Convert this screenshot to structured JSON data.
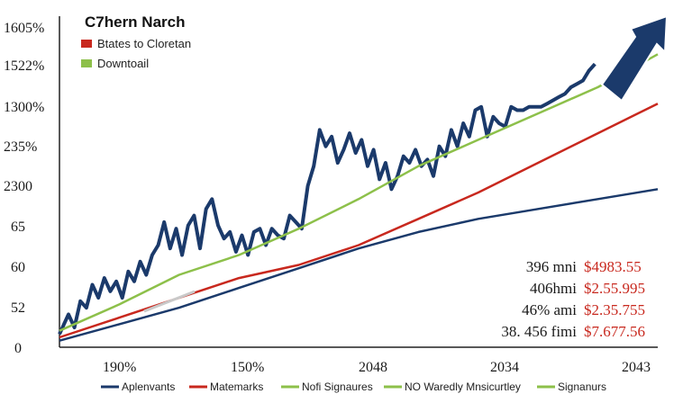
{
  "chart_data": {
    "type": "line",
    "title": "C7hern Narch",
    "y_tick_labels": [
      "1605%",
      "1522%",
      "1300%",
      "235%",
      "2300",
      "65",
      "60",
      "52",
      "0"
    ],
    "x_tick_labels": [
      "190%",
      "150%",
      "2048",
      "2034",
      "2043"
    ],
    "legend_top": [
      {
        "label": "Btates to Cloretan",
        "color": "#c8281e"
      },
      {
        "label": "Downtoail",
        "color": "#8dc04a"
      }
    ],
    "legend_bottom": [
      {
        "label": "Aplenvants",
        "color": "#1b3a6b"
      },
      {
        "label": "Matemarks",
        "color": "#c8281e"
      },
      {
        "label": "Nofi Signaures",
        "color": "#8dc04a"
      },
      {
        "label": "NO Waredly Mnsicurtley",
        "color": "#8dc04a"
      },
      {
        "label": "Signanurs",
        "color": "#8dc04a"
      }
    ],
    "annotations": [
      {
        "label": "396 mni",
        "value": "$4983.55"
      },
      {
        "label": "406hmi",
        "value": "$2.55.995"
      },
      {
        "label": "46% ami",
        "value": "$2.35.755"
      },
      {
        "label": "38. 456 fimi",
        "value": "$7.677.56"
      }
    ],
    "x_range": [
      0,
      100
    ],
    "y_range": [
      0,
      100
    ],
    "series": [
      {
        "name": "Aplenvants (volatile)",
        "color": "#1b3a6b",
        "x": [
          0,
          1.5,
          2.5,
          3.5,
          4.5,
          5.5,
          6.5,
          7.5,
          8.5,
          9.5,
          10.5,
          11.5,
          12.5,
          13.5,
          14.5,
          15.5,
          16.5,
          17.5,
          18.5,
          19.5,
          20.5,
          21.5,
          22.5,
          23.5,
          24.5,
          25.5,
          26.5,
          27.5,
          28.5,
          29.5,
          30.5,
          31.5,
          32.5,
          33.5,
          34.5,
          35.5,
          36.5,
          37.5,
          38.5,
          39.5,
          40.5,
          41.5,
          42.5,
          43.5,
          44.5,
          45.5,
          46.5,
          47.5,
          48.5,
          49.5,
          50.5,
          51.5,
          52.5,
          53.5,
          54.5,
          55.5,
          56.5,
          57.5,
          58.5,
          59.5,
          60.5,
          61.5,
          62.5,
          63.5,
          64.5,
          65.5,
          66.5,
          67.5,
          68.5,
          69.5,
          70.5,
          71.5,
          72.5,
          73.5,
          74.5,
          75.5,
          76.5,
          77.5,
          78.5,
          79.5,
          80.5,
          81.5,
          82.5,
          83.5,
          84.5,
          85.5,
          86.5,
          87.5,
          88.5,
          89.5
        ],
        "y": [
          4,
          10,
          6,
          14,
          12,
          19,
          15,
          21,
          17,
          20,
          15,
          23,
          20,
          26,
          22,
          28,
          31,
          38,
          30,
          36,
          28,
          37,
          40,
          30,
          42,
          45,
          37,
          33,
          35,
          29,
          34,
          28,
          35,
          36,
          31,
          36,
          34,
          33,
          40,
          38,
          36,
          49,
          55,
          66,
          61,
          64,
          56,
          60,
          65,
          59,
          63,
          55,
          60,
          51,
          56,
          48,
          52,
          58,
          56,
          60,
          55,
          57,
          52,
          61,
          58,
          66,
          61,
          68,
          64,
          72,
          73,
          64,
          70,
          68,
          67,
          73,
          72,
          72,
          73,
          73,
          73,
          74,
          75,
          76,
          77,
          79,
          80,
          81,
          84,
          86
        ]
      },
      {
        "name": "Aplenvants (trend)",
        "color": "#1b3a6b",
        "x": [
          0,
          10,
          20,
          30,
          40,
          50,
          60,
          70,
          80,
          90,
          100
        ],
        "y": [
          2,
          7,
          12,
          18,
          24,
          30,
          35,
          39,
          42,
          45,
          48
        ]
      },
      {
        "name": "Matemarks",
        "color": "#c8281e",
        "x": [
          0,
          10,
          20,
          30,
          40,
          50,
          60,
          70,
          80,
          90,
          100
        ],
        "y": [
          3,
          9,
          15,
          21,
          25,
          31,
          39,
          47,
          56,
          65,
          74
        ]
      },
      {
        "name": "Nofi Signaures",
        "color": "#8dc04a",
        "x": [
          0,
          10,
          20,
          30,
          40,
          50,
          60,
          70,
          80,
          90,
          100
        ],
        "y": [
          5,
          13,
          22,
          28,
          36,
          45,
          55,
          63,
          71,
          79,
          89
        ]
      }
    ]
  }
}
